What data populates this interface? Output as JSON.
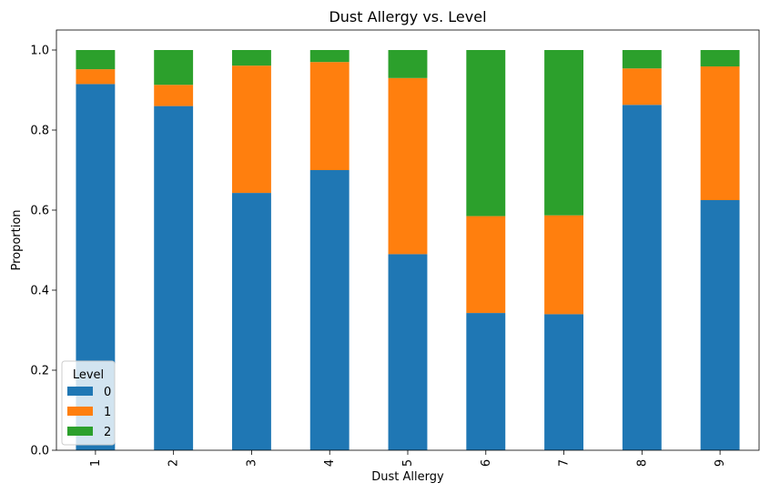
{
  "chart_data": {
    "type": "bar",
    "stacked": true,
    "title": "Dust Allergy vs. Level",
    "xlabel": "Dust Allergy",
    "ylabel": "Proportion",
    "ylim": [
      0,
      1.05
    ],
    "yticks": [
      "0.0",
      "0.2",
      "0.4",
      "0.6",
      "0.8",
      "1.0"
    ],
    "categories": [
      "1",
      "2",
      "3",
      "4",
      "5",
      "6",
      "7",
      "8",
      "9"
    ],
    "series": [
      {
        "name": "0",
        "color": "#1f77b4",
        "values": [
          0.915,
          0.86,
          0.643,
          0.7,
          0.49,
          0.343,
          0.34,
          0.863,
          0.625
        ]
      },
      {
        "name": "1",
        "color": "#ff7f0e",
        "values": [
          0.037,
          0.053,
          0.318,
          0.27,
          0.44,
          0.242,
          0.247,
          0.091,
          0.334
        ]
      },
      {
        "name": "2",
        "color": "#2ca02c",
        "values": [
          0.048,
          0.087,
          0.039,
          0.03,
          0.07,
          0.415,
          0.413,
          0.046,
          0.041
        ]
      }
    ],
    "legend": {
      "title": "Level",
      "placement": "lower-left"
    },
    "grid": false
  }
}
